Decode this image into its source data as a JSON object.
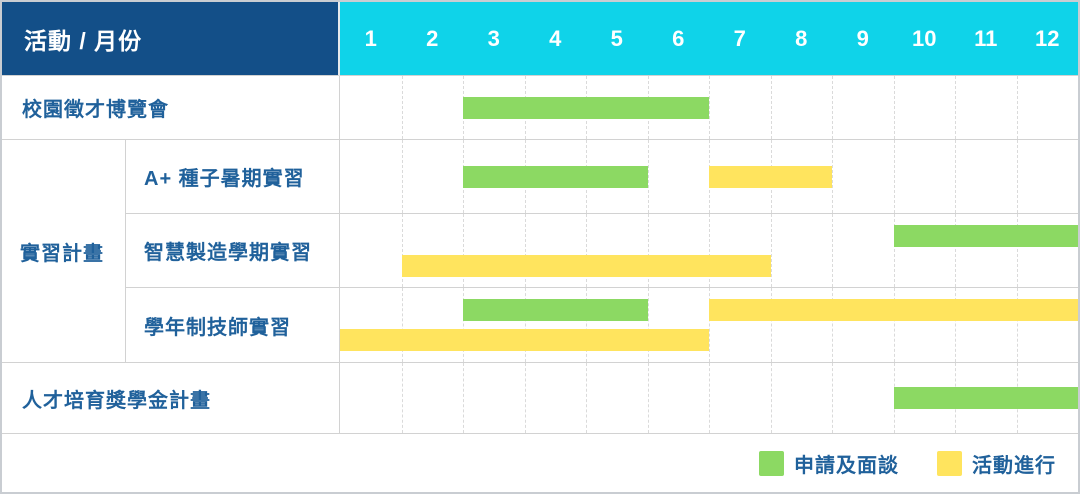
{
  "header": {
    "corner_label": "活動 / 月份",
    "months": [
      "1",
      "2",
      "3",
      "4",
      "5",
      "6",
      "7",
      "8",
      "9",
      "10",
      "11",
      "12"
    ]
  },
  "colors": {
    "navy": "#134F88",
    "cyan": "#0FD3E9",
    "green": "#8CD963",
    "yellow": "#FFE45E",
    "label": "#20619B",
    "grid": "#D2D2D2"
  },
  "group": {
    "label": "實習計畫"
  },
  "rows": [
    {
      "label": "校園徵才博覽會",
      "indent": false,
      "tracks": [
        [
          {
            "type": "apply",
            "start": 3,
            "end": 6
          }
        ]
      ]
    },
    {
      "label": "A+ 種子暑期實習",
      "indent": true,
      "tracks": [
        [
          {
            "type": "apply",
            "start": 3,
            "end": 5
          },
          {
            "type": "run",
            "start": 7,
            "end": 8
          }
        ]
      ]
    },
    {
      "label": "智慧製造學期實習",
      "indent": true,
      "tracks": [
        [
          {
            "type": "apply",
            "start": 10,
            "end": 12
          }
        ],
        [
          {
            "type": "run",
            "start": 2,
            "end": 7
          }
        ]
      ]
    },
    {
      "label": "學年制技師實習",
      "indent": true,
      "tracks": [
        [
          {
            "type": "apply",
            "start": 3,
            "end": 5
          },
          {
            "type": "run",
            "start": 7,
            "end": 12
          }
        ],
        [
          {
            "type": "run",
            "start": 1,
            "end": 6
          }
        ]
      ]
    },
    {
      "label": "人才培育獎學金計畫",
      "indent": false,
      "tracks": [
        [
          {
            "type": "apply",
            "start": 10,
            "end": 12
          }
        ]
      ]
    }
  ],
  "legend": {
    "items": [
      {
        "label": "申請及面談",
        "type": "apply",
        "color": "#8CD963"
      },
      {
        "label": "活動進行",
        "type": "run",
        "color": "#FFE45E"
      }
    ]
  },
  "chart_data": {
    "type": "gantt",
    "title": "",
    "x_axis": {
      "label": "月份",
      "ticks": [
        1,
        2,
        3,
        4,
        5,
        6,
        7,
        8,
        9,
        10,
        11,
        12
      ],
      "range": [
        1,
        12
      ]
    },
    "y_categories": [
      "校園徵才博覽會",
      "A+ 種子暑期實習",
      "智慧製造學期實習",
      "學年制技師實習",
      "人才培育獎學金計畫"
    ],
    "groups": [
      {
        "label": "實習計畫",
        "rows": [
          "A+ 種子暑期實習",
          "智慧製造學期實習",
          "學年制技師實習"
        ]
      }
    ],
    "series": [
      {
        "name": "申請及面談",
        "color": "#8CD963",
        "segments": [
          {
            "activity": "校園徵才博覽會",
            "start_month": 3,
            "end_month": 6
          },
          {
            "activity": "A+ 種子暑期實習",
            "start_month": 3,
            "end_month": 5
          },
          {
            "activity": "智慧製造學期實習",
            "start_month": 10,
            "end_month": 12
          },
          {
            "activity": "學年制技師實習",
            "start_month": 3,
            "end_month": 5
          },
          {
            "activity": "人才培育獎學金計畫",
            "start_month": 10,
            "end_month": 12
          }
        ]
      },
      {
        "name": "活動進行",
        "color": "#FFE45E",
        "segments": [
          {
            "activity": "A+ 種子暑期實習",
            "start_month": 7,
            "end_month": 8
          },
          {
            "activity": "智慧製造學期實習",
            "start_month": 2,
            "end_month": 7
          },
          {
            "activity": "學年制技師實習",
            "start_month": 7,
            "end_month": 12
          },
          {
            "activity": "學年制技師實習",
            "start_month": 1,
            "end_month": 6
          }
        ]
      }
    ],
    "legend": {
      "position": "bottom-right",
      "entries": [
        "申請及面談",
        "活動進行"
      ]
    },
    "grid": "monthly-dashed"
  }
}
